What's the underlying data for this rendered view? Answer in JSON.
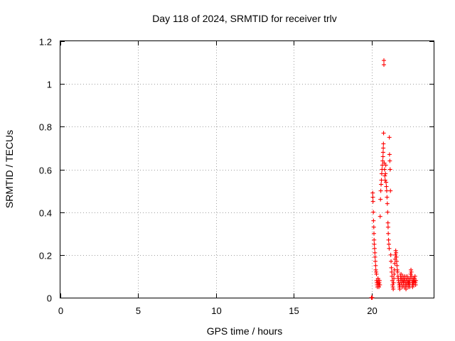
{
  "chart_data": {
    "type": "scatter",
    "title": "Day 118 of 2024, SRMTID for receiver trlv",
    "xlabel": "GPS time / hours",
    "ylabel": "SRMTID / TECUs",
    "xlim": [
      0,
      24
    ],
    "ylim": [
      0,
      1.2
    ],
    "xticks": [
      "0",
      "5",
      "10",
      "15",
      "20"
    ],
    "xtick_values": [
      0,
      5,
      10,
      15,
      20
    ],
    "yticks": [
      "0",
      "0.2",
      "0.4",
      "0.6",
      "0.8",
      "1",
      "1.2"
    ],
    "ytick_values": [
      0,
      0.2,
      0.4,
      0.6,
      0.8,
      1.0,
      1.2
    ],
    "grid": true,
    "marker": "+",
    "color": "#ff0000",
    "series": [
      {
        "points": [
          [
            20.0,
            0.0
          ],
          [
            20.02,
            0.0
          ],
          [
            20.04,
            0.0
          ],
          [
            20.05,
            0.0
          ],
          [
            20.08,
            0.49
          ],
          [
            20.09,
            0.47
          ],
          [
            20.1,
            0.45
          ],
          [
            20.12,
            0.4
          ],
          [
            20.13,
            0.36
          ],
          [
            20.15,
            0.33
          ],
          [
            20.16,
            0.3
          ],
          [
            20.17,
            0.27
          ],
          [
            20.18,
            0.25
          ],
          [
            20.2,
            0.23
          ],
          [
            20.22,
            0.21
          ],
          [
            20.23,
            0.19
          ],
          [
            20.25,
            0.17
          ],
          [
            20.27,
            0.15
          ],
          [
            20.28,
            0.13
          ],
          [
            20.3,
            0.12
          ],
          [
            20.32,
            0.11
          ],
          [
            20.33,
            0.08
          ],
          [
            20.35,
            0.07
          ],
          [
            20.36,
            0.06
          ],
          [
            20.38,
            0.05
          ],
          [
            20.4,
            0.07
          ],
          [
            20.42,
            0.09
          ],
          [
            20.44,
            0.08
          ],
          [
            20.46,
            0.06
          ],
          [
            20.48,
            0.05
          ],
          [
            20.5,
            0.07
          ],
          [
            20.52,
            0.08
          ],
          [
            20.54,
            0.06
          ],
          [
            20.56,
            0.38
          ],
          [
            20.58,
            0.46
          ],
          [
            20.6,
            0.5
          ],
          [
            20.62,
            0.53
          ],
          [
            20.64,
            0.55
          ],
          [
            20.66,
            0.58
          ],
          [
            20.68,
            0.6
          ],
          [
            20.7,
            0.62
          ],
          [
            20.72,
            0.64
          ],
          [
            20.74,
            0.66
          ],
          [
            20.75,
            0.68
          ],
          [
            20.76,
            0.7
          ],
          [
            20.77,
            0.72
          ],
          [
            20.78,
            0.77
          ],
          [
            20.8,
            1.09
          ],
          [
            20.8,
            1.11
          ],
          [
            20.82,
            0.63
          ],
          [
            20.84,
            0.6
          ],
          [
            20.86,
            0.57
          ],
          [
            20.88,
            0.55
          ],
          [
            20.9,
            0.58
          ],
          [
            20.92,
            0.62
          ],
          [
            20.94,
            0.54
          ],
          [
            20.96,
            0.52
          ],
          [
            20.98,
            0.5
          ],
          [
            21.0,
            0.47
          ],
          [
            21.02,
            0.44
          ],
          [
            21.04,
            0.4
          ],
          [
            21.06,
            0.35
          ],
          [
            21.07,
            0.33
          ],
          [
            21.08,
            0.3
          ],
          [
            21.1,
            0.27
          ],
          [
            21.12,
            0.25
          ],
          [
            21.14,
            0.23
          ],
          [
            21.15,
            0.75
          ],
          [
            21.16,
            0.67
          ],
          [
            21.18,
            0.64
          ],
          [
            21.2,
            0.6
          ],
          [
            21.22,
            0.5
          ],
          [
            21.24,
            0.2
          ],
          [
            21.26,
            0.17
          ],
          [
            21.28,
            0.14
          ],
          [
            21.3,
            0.12
          ],
          [
            21.32,
            0.1
          ],
          [
            21.34,
            0.08
          ],
          [
            21.36,
            0.06
          ],
          [
            21.38,
            0.05
          ],
          [
            21.4,
            0.04
          ],
          [
            21.42,
            0.07
          ],
          [
            21.44,
            0.09
          ],
          [
            21.46,
            0.11
          ],
          [
            21.48,
            0.13
          ],
          [
            21.5,
            0.16
          ],
          [
            21.52,
            0.18
          ],
          [
            21.54,
            0.2
          ],
          [
            21.56,
            0.22
          ],
          [
            21.58,
            0.21
          ],
          [
            21.6,
            0.19
          ],
          [
            21.62,
            0.17
          ],
          [
            21.64,
            0.15
          ],
          [
            21.66,
            0.13
          ],
          [
            21.68,
            0.12
          ],
          [
            21.7,
            0.1
          ],
          [
            21.72,
            0.09
          ],
          [
            21.74,
            0.08
          ],
          [
            21.76,
            0.07
          ],
          [
            21.78,
            0.06
          ],
          [
            21.8,
            0.05
          ],
          [
            21.82,
            0.04
          ],
          [
            21.84,
            0.06
          ],
          [
            21.86,
            0.08
          ],
          [
            21.88,
            0.1
          ],
          [
            21.9,
            0.11
          ],
          [
            21.92,
            0.09
          ],
          [
            21.94,
            0.07
          ],
          [
            21.96,
            0.06
          ],
          [
            21.98,
            0.05
          ],
          [
            22.0,
            0.08
          ],
          [
            22.02,
            0.1
          ],
          [
            22.04,
            0.09
          ],
          [
            22.06,
            0.07
          ],
          [
            22.08,
            0.06
          ],
          [
            22.1,
            0.05
          ],
          [
            22.12,
            0.08
          ],
          [
            22.14,
            0.1
          ],
          [
            22.16,
            0.09
          ],
          [
            22.18,
            0.07
          ],
          [
            22.2,
            0.05
          ],
          [
            22.22,
            0.04
          ],
          [
            22.24,
            0.06
          ],
          [
            22.26,
            0.08
          ],
          [
            22.28,
            0.1
          ],
          [
            22.3,
            0.09
          ],
          [
            22.32,
            0.07
          ],
          [
            22.34,
            0.06
          ],
          [
            22.36,
            0.05
          ],
          [
            22.38,
            0.07
          ],
          [
            22.4,
            0.09
          ],
          [
            22.42,
            0.08
          ],
          [
            22.44,
            0.06
          ],
          [
            22.46,
            0.05
          ],
          [
            22.48,
            0.07
          ],
          [
            22.5,
            0.09
          ],
          [
            22.52,
            0.11
          ],
          [
            22.54,
            0.13
          ],
          [
            22.56,
            0.12
          ],
          [
            22.58,
            0.1
          ],
          [
            22.6,
            0.08
          ],
          [
            22.62,
            0.06
          ],
          [
            22.64,
            0.05
          ],
          [
            22.66,
            0.07
          ],
          [
            22.68,
            0.09
          ],
          [
            22.7,
            0.08
          ],
          [
            22.72,
            0.06
          ],
          [
            22.74,
            0.07
          ],
          [
            22.76,
            0.09
          ],
          [
            22.78,
            0.08
          ],
          [
            22.8,
            0.1
          ],
          [
            22.82,
            0.07
          ],
          [
            22.84,
            0.06
          ],
          [
            22.86,
            0.08
          ]
        ]
      }
    ]
  }
}
